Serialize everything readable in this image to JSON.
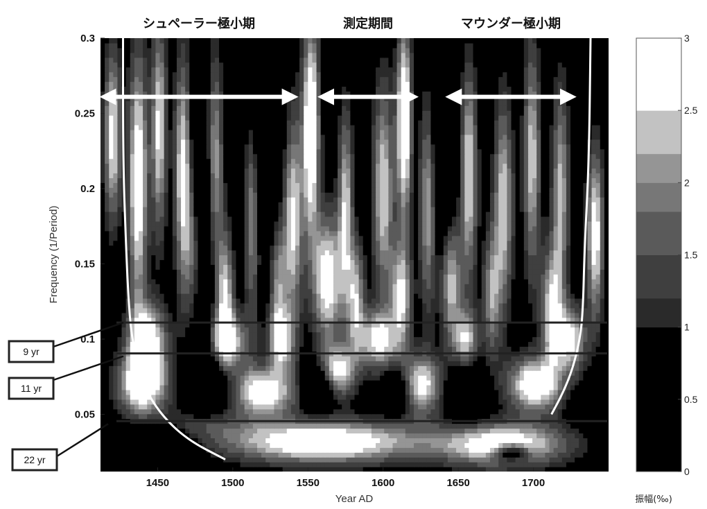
{
  "chart_data": {
    "type": "heatmap",
    "title": "",
    "xlabel": "Year AD",
    "ylabel": "Frequency (1/Period)",
    "xlim": [
      1412,
      1750
    ],
    "ylim": [
      0.012,
      0.3
    ],
    "xticks": [
      1450,
      1500,
      1550,
      1600,
      1650,
      1700
    ],
    "xtick_labels": [
      "1450",
      "1500",
      "1550",
      "1600",
      "1650",
      "1700"
    ],
    "yticks": [
      0.05,
      0.1,
      0.15,
      0.2,
      0.25,
      0.3
    ],
    "ytick_labels": [
      "0.05",
      "0.1",
      "0.15",
      "0.2",
      "0.25",
      "0.3"
    ],
    "grid": false,
    "colormap": "gray",
    "colorbar": {
      "label": "振幅(‰)",
      "range": [
        0,
        3
      ],
      "ticks": [
        0,
        0.5,
        1,
        1.5,
        2,
        2.5,
        3
      ],
      "tick_labels": [
        "0",
        "0.5",
        "1",
        "1.5",
        "2",
        "2.5",
        "3"
      ],
      "levels": [
        {
          "from": 0.0,
          "to": 1.0,
          "color": "#000000"
        },
        {
          "from": 1.0,
          "to": 1.2,
          "color": "#2a2a2a"
        },
        {
          "from": 1.2,
          "to": 1.5,
          "color": "#3f3f3f"
        },
        {
          "from": 1.5,
          "to": 1.8,
          "color": "#5a5a5a"
        },
        {
          "from": 1.8,
          "to": 2.0,
          "color": "#777777"
        },
        {
          "from": 2.0,
          "to": 2.2,
          "color": "#959595"
        },
        {
          "from": 2.2,
          "to": 2.5,
          "color": "#c2c2c2"
        },
        {
          "from": 2.5,
          "to": 3.0,
          "color": "#ffffff"
        }
      ]
    },
    "periods": [
      {
        "label": "シュペーラー極小期",
        "start": 1415,
        "end": 1540
      },
      {
        "label": "測定期間",
        "start": 1560,
        "end": 1620
      },
      {
        "label": "マウンダー極小期",
        "start": 1645,
        "end": 1725
      }
    ],
    "reference_lines": [
      {
        "label": "9 yr",
        "frequency": 0.111
      },
      {
        "label": "11 yr",
        "frequency": 0.0905
      },
      {
        "label": "22 yr",
        "frequency": 0.0455
      }
    ],
    "cone_of_influence": {
      "left": [
        [
          1427,
          0.3
        ],
        [
          1427,
          0.22
        ],
        [
          1429,
          0.16
        ],
        [
          1431,
          0.12
        ],
        [
          1433,
          0.1
        ],
        [
          1440,
          0.07
        ],
        [
          1452,
          0.05
        ],
        [
          1470,
          0.033
        ],
        [
          1495,
          0.02
        ]
      ],
      "right": [
        [
          1738,
          0.3
        ],
        [
          1737,
          0.22
        ],
        [
          1734,
          0.16
        ],
        [
          1733,
          0.12
        ],
        [
          1731,
          0.1
        ],
        [
          1726,
          0.08
        ],
        [
          1720,
          0.065
        ],
        [
          1712,
          0.05
        ]
      ]
    },
    "field": {
      "background": 0.6,
      "blobs": [
        {
          "x": 1420,
          "y": 0.235,
          "sx": 4,
          "sy": 0.04,
          "a": 2.1
        },
        {
          "x": 1437,
          "y": 0.205,
          "sx": 4.5,
          "sy": 0.06,
          "a": 2.4
        },
        {
          "x": 1451,
          "y": 0.24,
          "sx": 3.5,
          "sy": 0.05,
          "a": 2.0
        },
        {
          "x": 1467,
          "y": 0.21,
          "sx": 4,
          "sy": 0.055,
          "a": 2.2
        },
        {
          "x": 1488,
          "y": 0.22,
          "sx": 4,
          "sy": 0.05,
          "a": 1.7
        },
        {
          "x": 1513,
          "y": 0.19,
          "sx": 4,
          "sy": 0.05,
          "a": 1.9
        },
        {
          "x": 1540,
          "y": 0.18,
          "sx": 4.5,
          "sy": 0.05,
          "a": 2.0
        },
        {
          "x": 1552,
          "y": 0.24,
          "sx": 4,
          "sy": 0.05,
          "a": 2.7
        },
        {
          "x": 1575,
          "y": 0.19,
          "sx": 3.5,
          "sy": 0.045,
          "a": 1.8
        },
        {
          "x": 1600,
          "y": 0.2,
          "sx": 5,
          "sy": 0.05,
          "a": 1.9
        },
        {
          "x": 1614,
          "y": 0.245,
          "sx": 3.5,
          "sy": 0.045,
          "a": 2.7
        },
        {
          "x": 1630,
          "y": 0.19,
          "sx": 4,
          "sy": 0.05,
          "a": 1.8
        },
        {
          "x": 1657,
          "y": 0.21,
          "sx": 4,
          "sy": 0.05,
          "a": 2.0
        },
        {
          "x": 1680,
          "y": 0.19,
          "sx": 4.5,
          "sy": 0.05,
          "a": 1.9
        },
        {
          "x": 1699,
          "y": 0.22,
          "sx": 4,
          "sy": 0.055,
          "a": 1.8
        },
        {
          "x": 1718,
          "y": 0.2,
          "sx": 4,
          "sy": 0.05,
          "a": 1.7
        },
        {
          "x": 1741,
          "y": 0.17,
          "sx": 4,
          "sy": 0.04,
          "a": 2.2
        },
        {
          "x": 1474,
          "y": 0.16,
          "sx": 4,
          "sy": 0.035,
          "a": 1.6
        },
        {
          "x": 1495,
          "y": 0.13,
          "sx": 4,
          "sy": 0.03,
          "a": 1.9
        },
        {
          "x": 1530,
          "y": 0.14,
          "sx": 4,
          "sy": 0.03,
          "a": 1.5
        },
        {
          "x": 1563,
          "y": 0.14,
          "sx": 7,
          "sy": 0.03,
          "a": 2.3
        },
        {
          "x": 1582,
          "y": 0.13,
          "sx": 4,
          "sy": 0.025,
          "a": 1.7
        },
        {
          "x": 1612,
          "y": 0.13,
          "sx": 5,
          "sy": 0.025,
          "a": 1.9
        },
        {
          "x": 1645,
          "y": 0.14,
          "sx": 5,
          "sy": 0.03,
          "a": 1.9
        },
        {
          "x": 1672,
          "y": 0.13,
          "sx": 4,
          "sy": 0.03,
          "a": 1.5
        },
        {
          "x": 1712,
          "y": 0.12,
          "sx": 5,
          "sy": 0.03,
          "a": 1.9
        },
        {
          "x": 1443,
          "y": 0.1,
          "sx": 9,
          "sy": 0.017,
          "a": 2.3
        },
        {
          "x": 1497,
          "y": 0.098,
          "sx": 9,
          "sy": 0.014,
          "a": 2.0
        },
        {
          "x": 1532,
          "y": 0.1,
          "sx": 6,
          "sy": 0.014,
          "a": 1.9
        },
        {
          "x": 1596,
          "y": 0.1,
          "sx": 10,
          "sy": 0.014,
          "a": 2.0
        },
        {
          "x": 1655,
          "y": 0.1,
          "sx": 6,
          "sy": 0.014,
          "a": 1.7
        },
        {
          "x": 1725,
          "y": 0.1,
          "sx": 7,
          "sy": 0.016,
          "a": 2.0
        },
        {
          "x": 1440,
          "y": 0.07,
          "sx": 12,
          "sy": 0.015,
          "a": 2.4
        },
        {
          "x": 1520,
          "y": 0.065,
          "sx": 15,
          "sy": 0.012,
          "a": 2.3
        },
        {
          "x": 1570,
          "y": 0.078,
          "sx": 8,
          "sy": 0.012,
          "a": 2.1
        },
        {
          "x": 1625,
          "y": 0.07,
          "sx": 10,
          "sy": 0.014,
          "a": 2.1
        },
        {
          "x": 1700,
          "y": 0.07,
          "sx": 12,
          "sy": 0.013,
          "a": 2.4
        },
        {
          "x": 1560,
          "y": 0.032,
          "sx": 45,
          "sy": 0.01,
          "a": 2.6
        },
        {
          "x": 1680,
          "y": 0.03,
          "sx": 30,
          "sy": 0.01,
          "a": 2.4
        },
        {
          "x": 1470,
          "y": 0.04,
          "sx": 20,
          "sy": 0.008,
          "a": 1.8
        }
      ],
      "troughs": [
        {
          "x": 1478,
          "y": 0.18,
          "sx": 6,
          "sy": 0.06,
          "a": 1.2
        },
        {
          "x": 1520,
          "y": 0.23,
          "sx": 8,
          "sy": 0.05,
          "a": 1.2
        },
        {
          "x": 1640,
          "y": 0.22,
          "sx": 6,
          "sy": 0.05,
          "a": 1.1
        },
        {
          "x": 1485,
          "y": 0.072,
          "sx": 10,
          "sy": 0.012,
          "a": 1.6
        },
        {
          "x": 1558,
          "y": 0.068,
          "sx": 8,
          "sy": 0.01,
          "a": 1.4
        },
        {
          "x": 1610,
          "y": 0.067,
          "sx": 6,
          "sy": 0.01,
          "a": 1.3
        },
        {
          "x": 1655,
          "y": 0.065,
          "sx": 8,
          "sy": 0.012,
          "a": 1.4
        },
        {
          "x": 1460,
          "y": 0.037,
          "sx": 20,
          "sy": 0.008,
          "a": 1.8
        },
        {
          "x": 1685,
          "y": 0.025,
          "sx": 8,
          "sy": 0.004,
          "a": 2.0
        }
      ]
    }
  }
}
